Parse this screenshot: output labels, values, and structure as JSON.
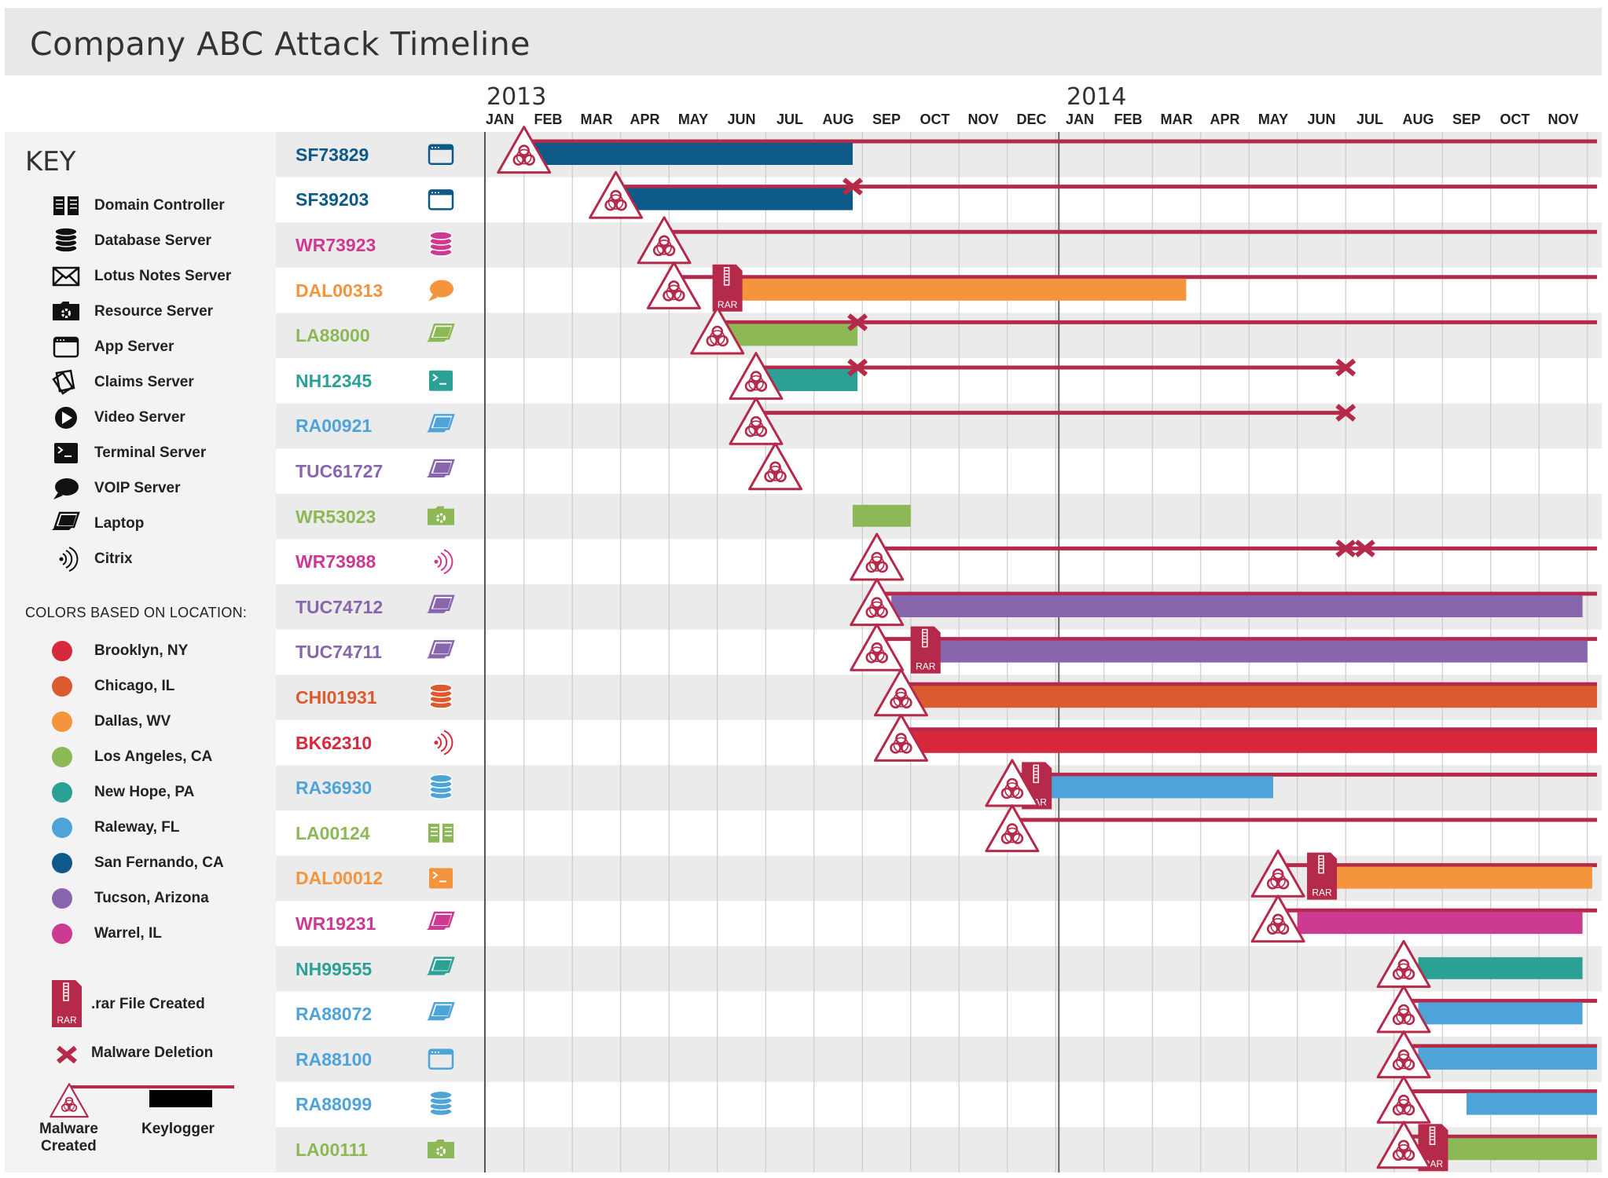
{
  "title": "Company ABC Attack Timeline",
  "colors": {
    "malware": "#b5294a",
    "grid": "#cccccc",
    "band": "#ebebeb"
  },
  "key": {
    "heading": "KEY",
    "items": [
      {
        "label": "Domain Controller",
        "icon": "book-icon"
      },
      {
        "label": "Database Server",
        "icon": "database-icon"
      },
      {
        "label": "Lotus Notes Server",
        "icon": "envelope-icon"
      },
      {
        "label": "Resource Server",
        "icon": "folder-gear-icon"
      },
      {
        "label": "App Server",
        "icon": "app-window-icon"
      },
      {
        "label": "Claims Server",
        "icon": "claims-icon"
      },
      {
        "label": "Video Server",
        "icon": "play-icon"
      },
      {
        "label": "Terminal Server",
        "icon": "terminal-icon"
      },
      {
        "label": "VOIP Server",
        "icon": "speech-bubble-icon"
      },
      {
        "label": "Laptop",
        "icon": "laptop-icon"
      },
      {
        "label": "Citrix",
        "icon": "citrix-icon"
      }
    ],
    "location_heading": "COLORS BASED ON LOCATION:",
    "locations": [
      {
        "label": "Brooklyn, NY",
        "color": "#d7283c"
      },
      {
        "label": "Chicago, IL",
        "color": "#dc5a30"
      },
      {
        "label": "Dallas, WV",
        "color": "#f4943c"
      },
      {
        "label": "Los Angeles, CA",
        "color": "#8db856"
      },
      {
        "label": "New Hope, PA",
        "color": "#2ba196"
      },
      {
        "label": "Raleway, FL",
        "color": "#4ea3d8"
      },
      {
        "label": "San Fernando, CA",
        "color": "#0d5987"
      },
      {
        "label": "Tucson, Arizona",
        "color": "#8766ad"
      },
      {
        "label": "Warrel, IL",
        "color": "#cc3a92"
      }
    ],
    "rar_label": ".rar File Created",
    "rar_text": "RAR",
    "deletion_label": "Malware Deletion",
    "malware_label_line1": "Malware",
    "malware_label_line2": "Created",
    "keylogger_label": "Keylogger"
  },
  "chart_data": {
    "type": "gantt",
    "title": "Company ABC Attack Timeline",
    "years": [
      {
        "label": "2013",
        "month_index": 0
      },
      {
        "label": "2014",
        "month_index": 12
      }
    ],
    "months": [
      "JAN",
      "FEB",
      "MAR",
      "APR",
      "MAY",
      "JUN",
      "JUL",
      "AUG",
      "SEP",
      "OCT",
      "NOV",
      "DEC",
      "JAN",
      "FEB",
      "MAR",
      "APR",
      "MAY",
      "JUN",
      "JUL",
      "AUG",
      "SEP",
      "OCT",
      "NOV"
    ],
    "time_unit": "months since Jan 2013",
    "rows": [
      {
        "id": "SF73829",
        "location": "San Fernando, CA",
        "color": "#0d5987",
        "server": "app-window-icon",
        "malware": 0.5,
        "line_end": 22.7,
        "bar": [
          0.6,
          7.3
        ],
        "rar": null,
        "deletions": []
      },
      {
        "id": "SF39203",
        "location": "San Fernando, CA",
        "color": "#0d5987",
        "server": "app-window-icon",
        "malware": 2.4,
        "line_end": 22.7,
        "bar": [
          2.5,
          7.3
        ],
        "rar": null,
        "deletions": [
          7.3
        ]
      },
      {
        "id": "WR73923",
        "location": "Warrel, IL",
        "color": "#cc3a92",
        "server": "database-icon",
        "malware": 3.4,
        "line_end": 22.7,
        "bar": null,
        "rar": null,
        "deletions": []
      },
      {
        "id": "DAL00313",
        "location": "Dallas, WV",
        "color": "#f4943c",
        "server": "speech-bubble-icon",
        "malware": 3.6,
        "line_end": 22.7,
        "bar": [
          4.6,
          14.2
        ],
        "rar": 4.4,
        "deletions": []
      },
      {
        "id": "LA88000",
        "location": "Los Angeles, CA",
        "color": "#8db856",
        "server": "laptop-icon",
        "malware": 4.5,
        "line_end": 22.7,
        "bar": [
          4.6,
          7.4
        ],
        "rar": null,
        "deletions": [
          7.4
        ]
      },
      {
        "id": "NH12345",
        "location": "New Hope, PA",
        "color": "#2ba196",
        "server": "terminal-icon",
        "malware": 5.3,
        "line_end": 17.5,
        "bar": [
          5.5,
          7.4
        ],
        "rar": null,
        "deletions": [
          7.4,
          17.5
        ]
      },
      {
        "id": "RA00921",
        "location": "Raleway, FL",
        "color": "#4ea3d8",
        "server": "laptop-icon",
        "malware": 5.3,
        "line_end": 17.5,
        "bar": null,
        "rar": null,
        "deletions": [
          17.5
        ]
      },
      {
        "id": "TUC61727",
        "location": "Tucson, Arizona",
        "color": "#8766ad",
        "server": "laptop-icon",
        "malware": 5.7,
        "line_end": null,
        "bar": null,
        "rar": null,
        "deletions": []
      },
      {
        "id": "WR53023",
        "location": "Los Angeles, CA",
        "color": "#8db856",
        "server": "folder-gear-icon",
        "malware": null,
        "line_end": null,
        "bar": [
          7.3,
          8.5
        ],
        "rar": null,
        "deletions": []
      },
      {
        "id": "WR73988",
        "location": "Warrel, IL",
        "color": "#cc3a92",
        "server": "citrix-icon",
        "malware": 7.8,
        "line_end": 22.7,
        "bar": null,
        "rar": null,
        "deletions": [
          17.5,
          17.9
        ]
      },
      {
        "id": "TUC74712",
        "location": "Tucson, Arizona",
        "color": "#8766ad",
        "server": "laptop-icon",
        "malware": 7.8,
        "line_end": 22.7,
        "bar": [
          8.1,
          22.4
        ],
        "rar": null,
        "deletions": []
      },
      {
        "id": "TUC74711",
        "location": "Tucson, Arizona",
        "color": "#8766ad",
        "server": "laptop-icon",
        "malware": 7.8,
        "line_end": 22.7,
        "bar": [
          8.5,
          22.5
        ],
        "rar": 8.5,
        "deletions": []
      },
      {
        "id": "CHI01931",
        "location": "Chicago, IL",
        "color": "#dc5a30",
        "server": "database-icon",
        "malware": 8.3,
        "line_end": 22.7,
        "bar": [
          8.5,
          22.7
        ],
        "rar": null,
        "deletions": []
      },
      {
        "id": "BK62310",
        "location": "Brooklyn, NY",
        "color": "#d7283c",
        "server": "citrix-icon",
        "malware": 8.3,
        "line_end": 22.7,
        "bar": [
          8.5,
          22.7
        ],
        "rar": null,
        "deletions": []
      },
      {
        "id": "RA36930",
        "location": "Raleway, FL",
        "color": "#4ea3d8",
        "server": "database-icon",
        "malware": 10.6,
        "line_end": 22.7,
        "bar": [
          11.0,
          16.0
        ],
        "rar": 10.8,
        "deletions": []
      },
      {
        "id": "LA00124",
        "location": "Los Angeles, CA",
        "color": "#8db856",
        "server": "book-icon",
        "malware": 10.6,
        "line_end": 22.7,
        "bar": null,
        "rar": null,
        "deletions": []
      },
      {
        "id": "DAL00012",
        "location": "Dallas, WV",
        "color": "#f4943c",
        "server": "terminal-icon",
        "malware": 16.1,
        "line_end": 22.7,
        "bar": [
          17.0,
          22.6
        ],
        "rar": 16.7,
        "deletions": []
      },
      {
        "id": "WR19231",
        "location": "Warrel, IL",
        "color": "#cc3a92",
        "server": "laptop-icon",
        "malware": 16.1,
        "line_end": 22.7,
        "bar": [
          16.5,
          22.4
        ],
        "rar": null,
        "deletions": []
      },
      {
        "id": "NH99555",
        "location": "New Hope, PA",
        "color": "#2ba196",
        "server": "laptop-icon",
        "malware": 18.7,
        "line_end": null,
        "bar": [
          19.0,
          22.4
        ],
        "rar": null,
        "deletions": []
      },
      {
        "id": "RA88072",
        "location": "Raleway, FL",
        "color": "#4ea3d8",
        "server": "laptop-icon",
        "malware": 18.7,
        "line_end": 22.7,
        "bar": [
          19.0,
          22.4
        ],
        "rar": null,
        "deletions": []
      },
      {
        "id": "RA88100",
        "location": "Raleway, FL",
        "color": "#4ea3d8",
        "server": "app-window-icon",
        "malware": 18.7,
        "line_end": 22.7,
        "bar": [
          19.0,
          22.7
        ],
        "rar": null,
        "deletions": []
      },
      {
        "id": "RA88099",
        "location": "Raleway, FL",
        "color": "#4ea3d8",
        "server": "database-icon",
        "malware": 18.7,
        "line_end": 22.7,
        "bar": [
          20.0,
          22.7
        ],
        "rar": null,
        "deletions": []
      },
      {
        "id": "LA00111",
        "location": "Los Angeles, CA",
        "color": "#8db856",
        "server": "folder-gear-icon",
        "malware": 18.7,
        "line_end": 22.7,
        "bar": [
          19.3,
          22.7
        ],
        "rar": 19.0,
        "deletions": []
      }
    ]
  }
}
